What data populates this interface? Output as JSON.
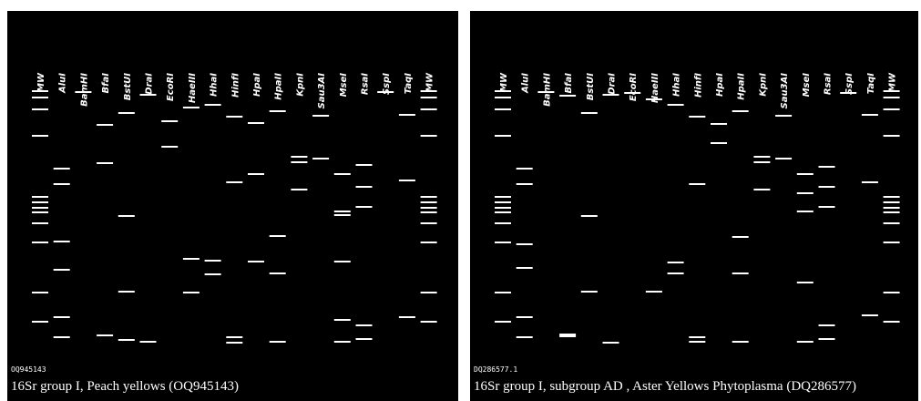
{
  "panels": [
    {
      "lanes": [
        "MW",
        "AluI",
        "BamHI",
        "BfaI",
        "BstUI",
        "DraI",
        "EcoRI",
        "HaeIII",
        "HhaI",
        "HinfI",
        "HpaI",
        "HpaII",
        "KpnI",
        "Sau3AI",
        "MseI",
        "RsaI",
        "SspI",
        "TaqI",
        "MW"
      ],
      "accession": "OQ945143",
      "caption": "16Sr group I, Peach yellows  (OQ945143)"
    },
    {
      "lanes": [
        "MW",
        "AluI",
        "BamHI",
        "BfaI",
        "BstUI",
        "DraI",
        "EcoRI",
        "HaeIII",
        "HhaI",
        "HinfI",
        "HpaI",
        "HpaII",
        "KpnI",
        "Sau3AI",
        "MseI",
        "RsaI",
        "SspI",
        "TaqI",
        "MW"
      ],
      "accession": "DQ286577.1",
      "caption": "16Sr group I, subgroup AD , Aster Yellows Phytoplasma (DQ286577)"
    }
  ]
}
